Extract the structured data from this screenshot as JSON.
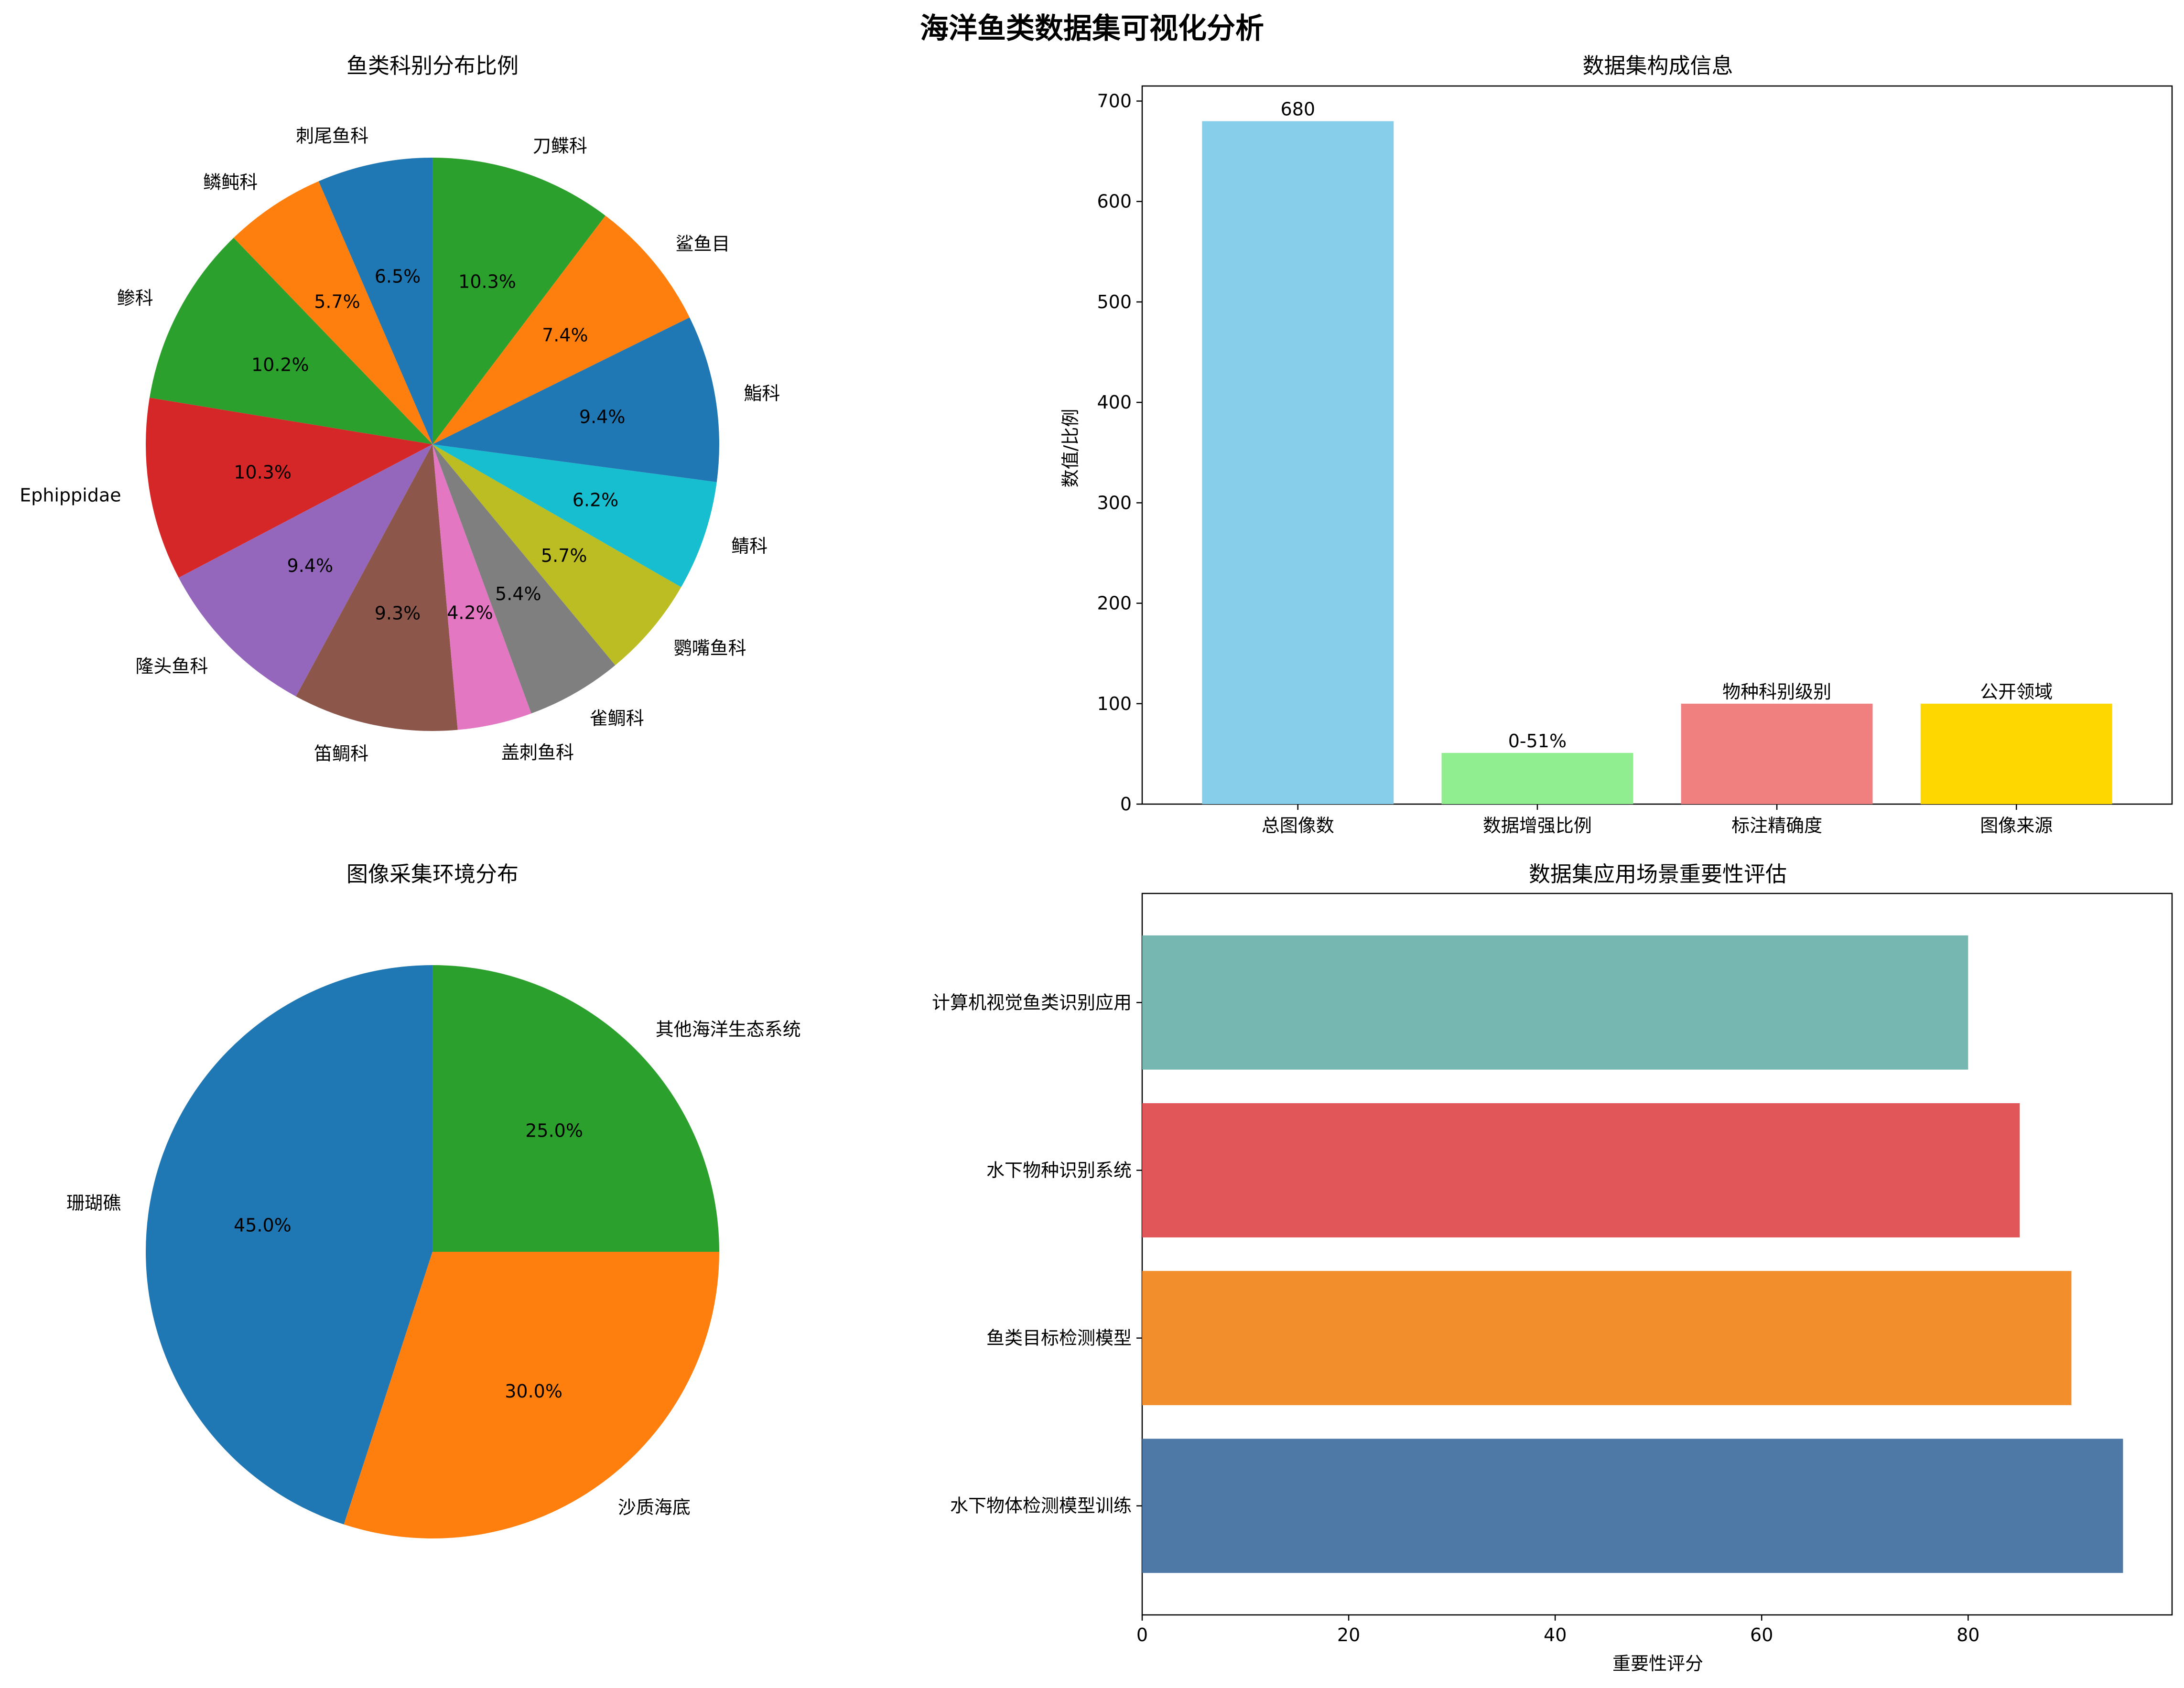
{
  "figure": {
    "title": "海洋鱼类数据集可视化分析"
  },
  "chart_data": [
    {
      "type": "pie",
      "title": "鱼类科别分布比例",
      "start_angle_deg": 90,
      "direction": "counterclockwise",
      "categories": [
        "刺尾鱼科",
        "鳞鲀科",
        "鲹科",
        "Ephippidae",
        "隆头鱼科",
        "笛鲷科",
        "盖刺鱼科",
        "雀鲷科",
        "鹦嘴鱼科",
        "鲭科",
        "鮨科",
        "鲨鱼目",
        "刀鲽科"
      ],
      "values": [
        6.5,
        5.7,
        10.2,
        10.3,
        9.4,
        9.3,
        4.2,
        5.4,
        5.7,
        6.2,
        9.4,
        7.4,
        10.3
      ],
      "value_labels": [
        "6.5%",
        "5.7%",
        "10.2%",
        "10.3%",
        "9.4%",
        "9.3%",
        "4.2%",
        "5.4%",
        "5.7%",
        "6.2%",
        "9.4%",
        "7.4%",
        "10.3%"
      ],
      "colors": [
        "#1f77b4",
        "#ff7f0e",
        "#2ca02c",
        "#d62728",
        "#9467bd",
        "#8c564b",
        "#e377c2",
        "#7f7f7f",
        "#bcbd22",
        "#17becf",
        "#1f77b4",
        "#ff7f0e",
        "#2ca02c"
      ]
    },
    {
      "type": "bar",
      "title": "数据集构成信息",
      "ylabel": "数值/比例",
      "ylim": [
        0,
        715
      ],
      "yticks": [
        0,
        100,
        200,
        300,
        400,
        500,
        600,
        700
      ],
      "categories": [
        "总图像数",
        "数据增强比例",
        "标注精确度",
        "图像来源"
      ],
      "values": [
        680,
        51,
        100,
        100
      ],
      "bar_labels": [
        "680",
        "0-51%",
        "物种科别级别",
        "公开领域"
      ],
      "colors": [
        "#87ceeb",
        "#90ee90",
        "#f08080",
        "#ffd700"
      ]
    },
    {
      "type": "pie",
      "title": "图像采集环境分布",
      "start_angle_deg": 90,
      "direction": "counterclockwise",
      "categories": [
        "珊瑚礁",
        "沙质海底",
        "其他海洋生态系统"
      ],
      "values": [
        45.0,
        30.0,
        25.0
      ],
      "value_labels": [
        "45.0%",
        "30.0%",
        "25.0%"
      ],
      "colors": [
        "#1f77b4",
        "#ff7f0e",
        "#2ca02c"
      ]
    },
    {
      "type": "barh",
      "title": "数据集应用场景重要性评估",
      "xlabel": "重要性评分",
      "xlim": [
        0,
        99.75
      ],
      "xticks": [
        0,
        20,
        40,
        60,
        80
      ],
      "categories": [
        "水下物体检测模型训练",
        "鱼类目标检测模型",
        "水下物种识别系统",
        "计算机视觉鱼类识别应用"
      ],
      "values": [
        95,
        90,
        85,
        80
      ],
      "colors": [
        "#4e79a7",
        "#f28e2b",
        "#e15759",
        "#76b7b2"
      ]
    }
  ]
}
